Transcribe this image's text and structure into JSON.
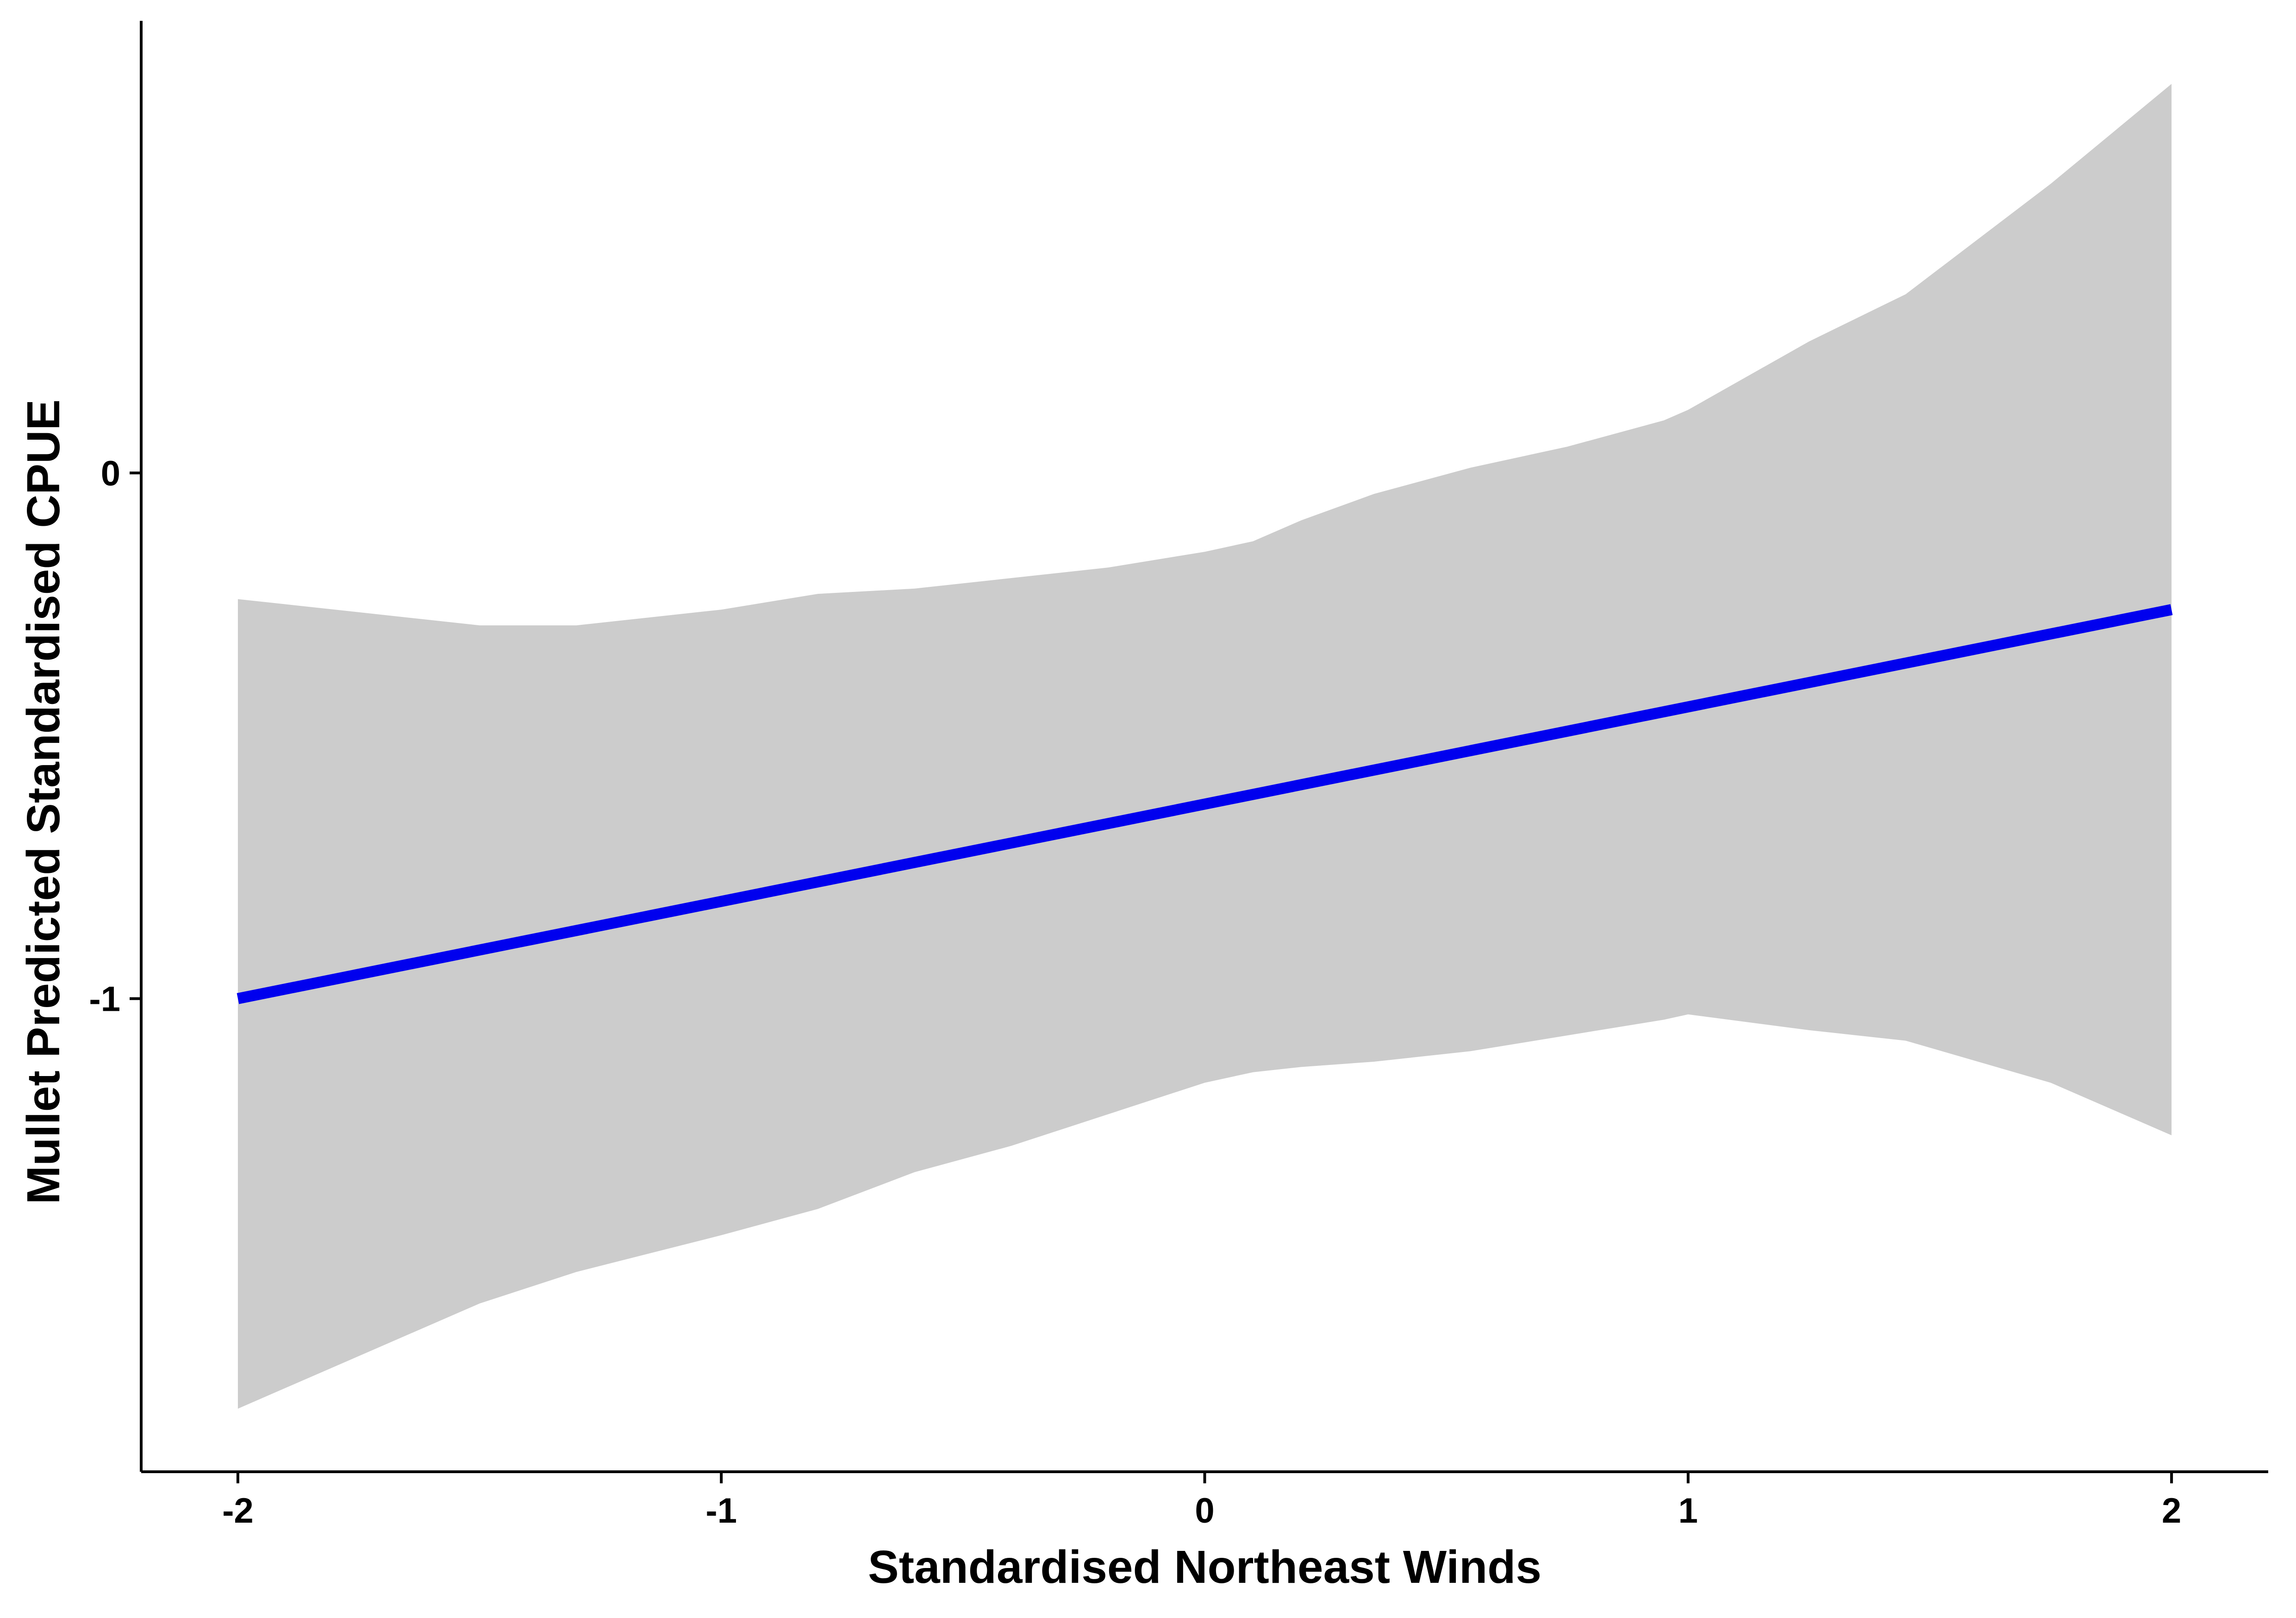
{
  "chart_data": {
    "type": "line",
    "title": "",
    "xlabel": "Standardised Northeast Winds",
    "ylabel": "Mullet Predicted Standardised CPUE",
    "xlim": [
      -2.2,
      2.2
    ],
    "ylim": [
      -1.9,
      0.86
    ],
    "x_ticks": [
      -2,
      -1,
      0,
      1,
      2
    ],
    "y_ticks": [
      -1,
      0
    ],
    "x_tick_labels": [
      "-2",
      "-1",
      "0",
      "1",
      "2"
    ],
    "y_tick_labels": [
      "-1",
      "0"
    ],
    "grid": false,
    "legend": "none",
    "colors": {
      "line": "#0000ee",
      "band": "#cccccc",
      "axis": "#000000"
    },
    "series": [
      {
        "x": [
          -2,
          2
        ],
        "y": [
          -1.0,
          -0.26
        ]
      }
    ],
    "confidence_band": {
      "x": [
        -2.0,
        -1.9,
        -1.7,
        -1.5,
        -1.3,
        -1.0,
        -0.8,
        -0.6,
        -0.4,
        -0.2,
        0.0,
        0.1,
        0.2,
        0.35,
        0.55,
        0.75,
        0.95,
        1.0,
        1.25,
        1.45,
        1.75,
        2.0
      ],
      "upper": [
        -0.24,
        -0.25,
        -0.27,
        -0.29,
        -0.29,
        -0.26,
        -0.23,
        -0.22,
        -0.2,
        -0.18,
        -0.15,
        -0.13,
        -0.09,
        -0.04,
        0.01,
        0.05,
        0.1,
        0.12,
        0.25,
        0.34,
        0.55,
        0.74
      ],
      "lower": [
        -1.78,
        -1.74,
        -1.66,
        -1.58,
        -1.52,
        -1.45,
        -1.4,
        -1.33,
        -1.28,
        -1.22,
        -1.16,
        -1.14,
        -1.13,
        -1.12,
        -1.1,
        -1.07,
        -1.04,
        -1.03,
        -1.06,
        -1.08,
        -1.16,
        -1.26
      ]
    }
  }
}
